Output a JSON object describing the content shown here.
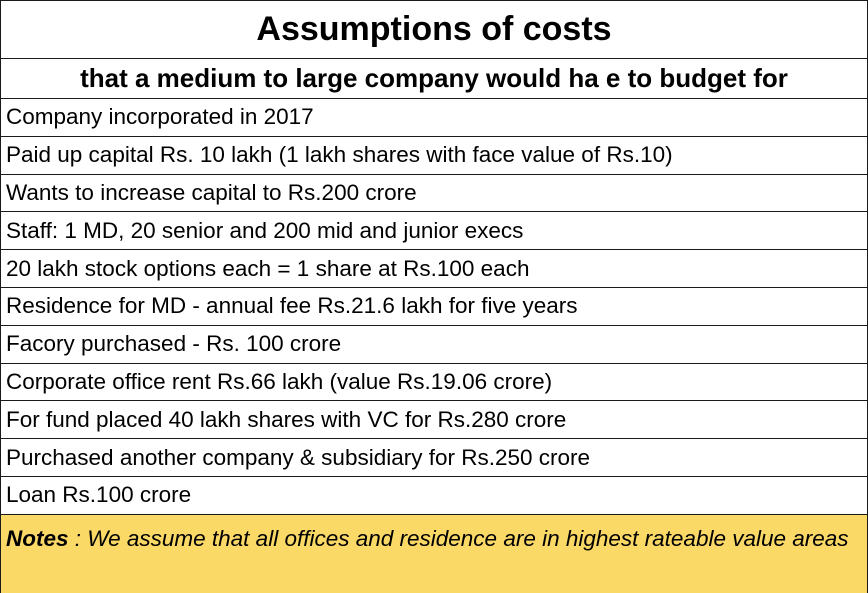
{
  "title": "Assumptions of costs",
  "subtitle": "that a medium to large company would ha e to budget for",
  "items": [
    "Company incorporated in 2017",
    "Paid up capital Rs. 10 lakh (1 lakh shares with face value of Rs.10)",
    "Wants to increase capital to Rs.200 crore",
    "Staff: 1 MD, 20 senior and 200 mid and junior execs",
    "20 lakh stock options each = 1 share at Rs.100 each",
    "Residence for MD - annual fee Rs.21.6 lakh for five years",
    "Facory purchased - Rs. 100 crore",
    "Corporate office rent Rs.66 lakh (value Rs.19.06 crore)",
    "For fund placed 40 lakh shares with VC for Rs.280 crore",
    "Purchased another company & subsidiary for Rs.250 crore",
    "Loan Rs.100 crore"
  ],
  "notes": {
    "label": "Notes",
    "text": " : We assume that all offices and residence are in highest rateable value  areas"
  },
  "colors": {
    "notes_background": "#fbd967",
    "border": "#1a1a1a"
  }
}
